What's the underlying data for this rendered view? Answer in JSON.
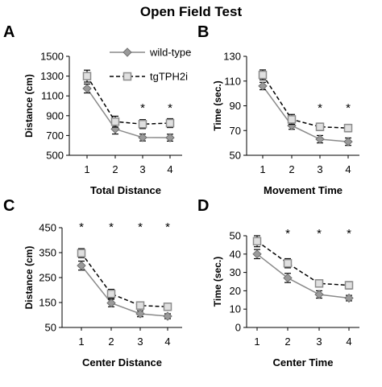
{
  "figure_title": "Open Field Test",
  "legend": [
    {
      "label": "wild-type",
      "style": "solid",
      "color": "#808080",
      "marker": "diamond"
    },
    {
      "label": "tgTPH2i",
      "style": "dashed",
      "color": "#b0b0b0",
      "marker": "square"
    }
  ],
  "chart_data": [
    {
      "panel": "A",
      "type": "line",
      "title": "",
      "xlabel": "Total Distance",
      "ylabel": "Distance (cm)",
      "categories": [
        "1",
        "2",
        "3",
        "4"
      ],
      "ylim": [
        500,
        1500
      ],
      "yticks": [
        "500",
        "700",
        "900",
        "1100",
        "1300",
        "1500"
      ],
      "series": [
        {
          "name": "wild-type",
          "values": [
            1175,
            765,
            680,
            678
          ],
          "errors": [
            45,
            50,
            35,
            35
          ]
        },
        {
          "name": "tgTPH2i",
          "values": [
            1300,
            840,
            815,
            825
          ],
          "errors": [
            60,
            55,
            45,
            45
          ]
        }
      ],
      "significance": [
        "",
        "",
        "*",
        "*"
      ]
    },
    {
      "panel": "B",
      "type": "line",
      "title": "",
      "xlabel": "Movement Time",
      "ylabel": "Time (sec.)",
      "categories": [
        "1",
        "2",
        "3",
        "4"
      ],
      "ylim": [
        50,
        130
      ],
      "yticks": [
        "50",
        "70",
        "90",
        "110",
        "130"
      ],
      "series": [
        {
          "name": "wild-type",
          "values": [
            106,
            74,
            63,
            61
          ],
          "errors": [
            3,
            3,
            3,
            3
          ]
        },
        {
          "name": "tgTPH2i",
          "values": [
            115,
            79,
            73,
            72
          ],
          "errors": [
            4,
            4,
            3,
            3
          ]
        }
      ],
      "significance": [
        "",
        "",
        "*",
        "*"
      ]
    },
    {
      "panel": "C",
      "type": "line",
      "title": "",
      "xlabel": "Center Distance",
      "ylabel": "Distance (cm)",
      "categories": [
        "1",
        "2",
        "3",
        "4"
      ],
      "ylim": [
        50,
        450
      ],
      "yticks": [
        "50",
        "150",
        "250",
        "350",
        "450"
      ],
      "series": [
        {
          "name": "wild-type",
          "values": [
            298,
            148,
            105,
            95
          ],
          "errors": [
            18,
            15,
            12,
            10
          ]
        },
        {
          "name": "tgTPH2i",
          "values": [
            348,
            185,
            138,
            133
          ],
          "errors": [
            18,
            18,
            12,
            12
          ]
        }
      ],
      "significance": [
        "*",
        "*",
        "*",
        "*"
      ]
    },
    {
      "panel": "D",
      "type": "line",
      "title": "",
      "xlabel": "Center Time",
      "ylabel": "Time (sec.)",
      "categories": [
        "1",
        "2",
        "3",
        "4"
      ],
      "ylim": [
        0,
        50
      ],
      "yticks": [
        "0",
        "10",
        "20",
        "30",
        "40",
        "50"
      ],
      "series": [
        {
          "name": "wild-type",
          "values": [
            40,
            27,
            18,
            16
          ],
          "errors": [
            2.5,
            2.5,
            2,
            1.5
          ]
        },
        {
          "name": "tgTPH2i",
          "values": [
            47,
            35,
            24,
            23
          ],
          "errors": [
            3,
            2.5,
            2,
            2
          ]
        }
      ],
      "significance": [
        "",
        "*",
        "*",
        "*"
      ]
    }
  ]
}
